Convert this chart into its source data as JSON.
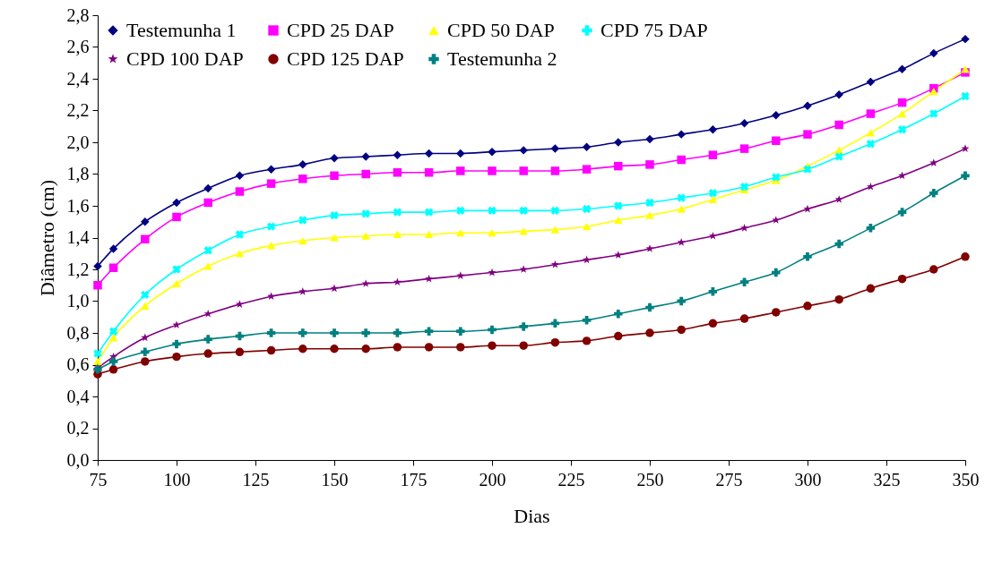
{
  "chart_data": {
    "type": "line",
    "xlabel": "Dias",
    "ylabel": "Diâmetro (cm)",
    "x": [
      75,
      80,
      90,
      100,
      110,
      120,
      130,
      140,
      150,
      160,
      170,
      180,
      190,
      200,
      210,
      220,
      230,
      240,
      250,
      260,
      270,
      280,
      290,
      300,
      310,
      320,
      330,
      340,
      350
    ],
    "xlim": [
      75,
      350
    ],
    "xticks": [
      75,
      100,
      125,
      150,
      175,
      200,
      225,
      250,
      275,
      300,
      325,
      350
    ],
    "ylim": [
      0,
      2.8
    ],
    "yticks": [
      {
        "value": 0,
        "label": "0,0"
      },
      {
        "value": 0.2,
        "label": "0,2"
      },
      {
        "value": 0.4,
        "label": "0,4"
      },
      {
        "value": 0.6,
        "label": "0,6"
      },
      {
        "value": 0.8,
        "label": "0,8"
      },
      {
        "value": 1,
        "label": "1,0"
      },
      {
        "value": 1.2,
        "label": "1,2"
      },
      {
        "value": 1.4,
        "label": "1,4"
      },
      {
        "value": 1.6,
        "label": "1,6"
      },
      {
        "value": 1.8,
        "label": "1,8"
      },
      {
        "value": 2,
        "label": "2,0"
      },
      {
        "value": 2.2,
        "label": "2,2"
      },
      {
        "value": 2.4,
        "label": "2,4"
      },
      {
        "value": 2.6,
        "label": "2,6"
      },
      {
        "value": 2.8,
        "label": "2,8"
      }
    ],
    "grid": false,
    "legend": "top left",
    "line_style": "solid",
    "series": [
      {
        "name": "Testemunha 1",
        "color": "#000080",
        "marker": "diamond",
        "values": [
          1.22,
          1.33,
          1.5,
          1.62,
          1.71,
          1.79,
          1.83,
          1.86,
          1.9,
          1.91,
          1.92,
          1.93,
          1.93,
          1.94,
          1.95,
          1.96,
          1.97,
          2.0,
          2.02,
          2.05,
          2.08,
          2.12,
          2.17,
          2.23,
          2.3,
          2.38,
          2.46,
          2.56,
          2.65
        ]
      },
      {
        "name": "CPD 25 DAP",
        "color": "#ff00ff",
        "marker": "square",
        "values": [
          1.1,
          1.21,
          1.39,
          1.53,
          1.62,
          1.69,
          1.74,
          1.77,
          1.79,
          1.8,
          1.81,
          1.81,
          1.82,
          1.82,
          1.82,
          1.82,
          1.83,
          1.85,
          1.86,
          1.89,
          1.92,
          1.96,
          2.01,
          2.05,
          2.11,
          2.18,
          2.25,
          2.34,
          2.44
        ]
      },
      {
        "name": "CPD 50 DAP",
        "color": "#ffff00",
        "marker": "triangle",
        "values": [
          0.62,
          0.77,
          0.97,
          1.11,
          1.22,
          1.3,
          1.35,
          1.38,
          1.4,
          1.41,
          1.42,
          1.42,
          1.43,
          1.43,
          1.44,
          1.45,
          1.47,
          1.51,
          1.54,
          1.58,
          1.64,
          1.7,
          1.76,
          1.85,
          1.95,
          2.06,
          2.18,
          2.32,
          2.46
        ]
      },
      {
        "name": "CPD 75 DAP",
        "color": "#00ffff",
        "marker": "cross",
        "values": [
          0.67,
          0.81,
          1.04,
          1.2,
          1.32,
          1.42,
          1.47,
          1.51,
          1.54,
          1.55,
          1.56,
          1.56,
          1.57,
          1.57,
          1.57,
          1.57,
          1.58,
          1.6,
          1.62,
          1.65,
          1.68,
          1.72,
          1.78,
          1.83,
          1.91,
          1.99,
          2.08,
          2.18,
          2.29
        ]
      },
      {
        "name": "CPD 100 DAP",
        "color": "#800080",
        "marker": "star",
        "values": [
          0.58,
          0.65,
          0.77,
          0.85,
          0.92,
          0.98,
          1.03,
          1.06,
          1.08,
          1.11,
          1.12,
          1.14,
          1.16,
          1.18,
          1.2,
          1.23,
          1.26,
          1.29,
          1.33,
          1.37,
          1.41,
          1.46,
          1.51,
          1.58,
          1.64,
          1.72,
          1.79,
          1.87,
          1.96
        ]
      },
      {
        "name": "CPD 125 DAP",
        "color": "#800000",
        "marker": "circle",
        "values": [
          0.54,
          0.57,
          0.62,
          0.65,
          0.67,
          0.68,
          0.69,
          0.7,
          0.7,
          0.7,
          0.71,
          0.71,
          0.71,
          0.72,
          0.72,
          0.74,
          0.75,
          0.78,
          0.8,
          0.82,
          0.86,
          0.89,
          0.93,
          0.97,
          1.01,
          1.08,
          1.14,
          1.2,
          1.28
        ]
      },
      {
        "name": "Testemunha 2",
        "color": "#008080",
        "marker": "cross",
        "values": [
          0.57,
          0.62,
          0.68,
          0.73,
          0.76,
          0.78,
          0.8,
          0.8,
          0.8,
          0.8,
          0.8,
          0.81,
          0.81,
          0.82,
          0.84,
          0.86,
          0.88,
          0.92,
          0.96,
          1.0,
          1.06,
          1.12,
          1.18,
          1.28,
          1.36,
          1.46,
          1.56,
          1.68,
          1.79
        ]
      }
    ]
  }
}
